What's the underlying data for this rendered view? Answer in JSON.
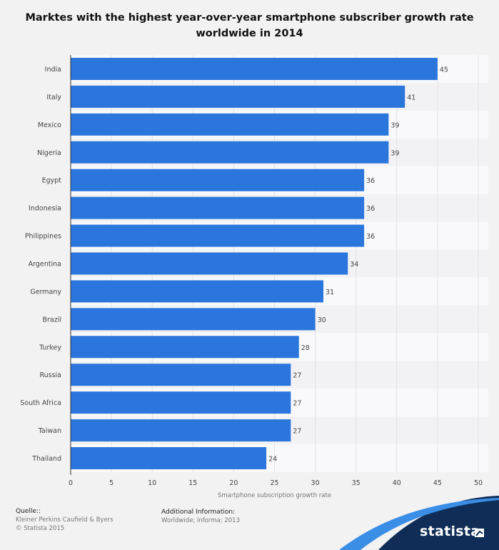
{
  "chart_data": {
    "type": "bar",
    "orientation": "horizontal",
    "title": "Marktes with the highest year-over-year smartphone subscriber growth rate worldwide in 2014",
    "xlabel": "Smartphone subscription growth rate",
    "ylabel": "",
    "xlim": [
      0,
      50
    ],
    "xticks": [
      0,
      5,
      10,
      15,
      20,
      25,
      30,
      35,
      40,
      45,
      50
    ],
    "categories": [
      "India",
      "Italy",
      "Mexico",
      "Nigeria",
      "Egypt",
      "Indonesia",
      "Philippines",
      "Argentina",
      "Germany",
      "Brazil",
      "Turkey",
      "Russia",
      "South Africa",
      "Taiwan",
      "Thailand"
    ],
    "values": [
      45,
      41,
      39,
      39,
      36,
      36,
      36,
      34,
      31,
      30,
      28,
      27,
      27,
      27,
      24
    ],
    "bar_color": "#2a76dd",
    "grid": true,
    "data_labels": true
  },
  "footer": {
    "source_header": "Quelle::",
    "source_line1": "Kleiner Perkins Caufield & Byers",
    "source_line2": "© Statista 2015",
    "info_header": "Additional Information:",
    "info_line": "Worldwide; Informa; 2013"
  },
  "brand": {
    "name": "statista",
    "color": "#0f2d56"
  }
}
